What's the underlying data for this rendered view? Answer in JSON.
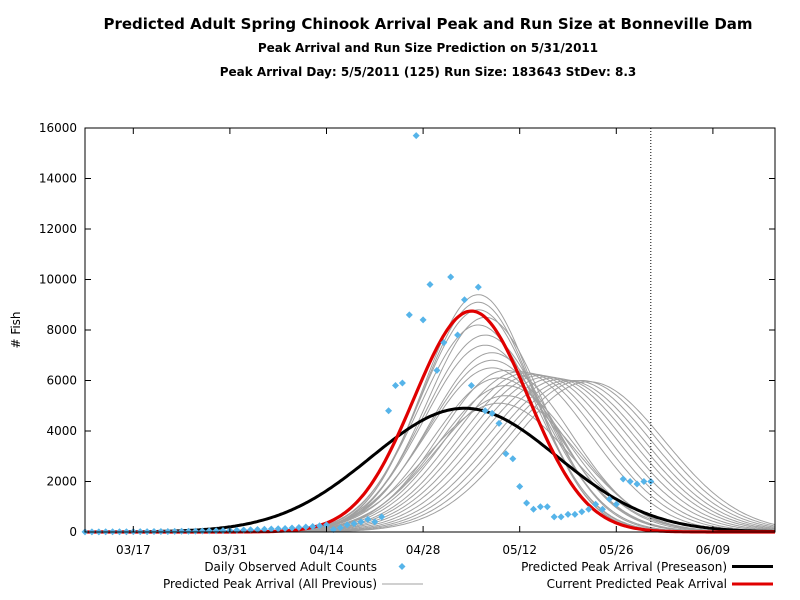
{
  "header": {
    "title": "Predicted Adult Spring Chinook Arrival Peak and Run Size at Bonneville Dam",
    "subtitle": "Peak Arrival and Run Size Prediction on 5/31/2011",
    "info_line": "Peak Arrival Day: 5/5/2011 (125) Run Size: 183643 StDev: 8.3"
  },
  "colors": {
    "observed": "#56b4e9",
    "current": "#e00000",
    "preseason": "#000000",
    "all_previous": "#a0a0a0"
  },
  "chart_data": {
    "type": "scatter",
    "title": "Predicted Adult Spring Chinook Arrival Peak and Run Size at Bonneville Dam",
    "subtitle": "Peak Arrival and Run Size Prediction on 5/31/2011",
    "ylabel": "# Fish",
    "xlabel": "",
    "xlim": [
      "2011-03-10",
      "2011-06-18"
    ],
    "ylim": [
      0,
      16000
    ],
    "xticks": [
      {
        "label": "03/17",
        "date": "2011-03-17"
      },
      {
        "label": "03/31",
        "date": "2011-03-31"
      },
      {
        "label": "04/14",
        "date": "2011-04-14"
      },
      {
        "label": "04/28",
        "date": "2011-04-28"
      },
      {
        "label": "05/12",
        "date": "2011-05-12"
      },
      {
        "label": "05/26",
        "date": "2011-05-26"
      },
      {
        "label": "06/09",
        "date": "2011-06-09"
      }
    ],
    "yticks": [
      0,
      2000,
      4000,
      6000,
      8000,
      10000,
      12000,
      14000,
      16000
    ],
    "vline_date": "2011-05-31",
    "legend_position": "bottom",
    "legend": {
      "observed": "Daily Observed Adult Counts",
      "all_previous": "Predicted Peak Arrival (All Previous)",
      "preseason": "Predicted Peak Arrival (Preseason)",
      "current": "Current Predicted Peak Arrival"
    },
    "observed": {
      "name": "Daily Observed Adult Counts",
      "x": [
        "2011-03-10",
        "2011-03-11",
        "2011-03-12",
        "2011-03-13",
        "2011-03-14",
        "2011-03-15",
        "2011-03-16",
        "2011-03-17",
        "2011-03-18",
        "2011-03-19",
        "2011-03-20",
        "2011-03-21",
        "2011-03-22",
        "2011-03-23",
        "2011-03-24",
        "2011-03-25",
        "2011-03-26",
        "2011-03-27",
        "2011-03-28",
        "2011-03-29",
        "2011-03-30",
        "2011-03-31",
        "2011-04-01",
        "2011-04-02",
        "2011-04-03",
        "2011-04-04",
        "2011-04-05",
        "2011-04-06",
        "2011-04-07",
        "2011-04-08",
        "2011-04-09",
        "2011-04-10",
        "2011-04-11",
        "2011-04-12",
        "2011-04-13",
        "2011-04-14",
        "2011-04-15",
        "2011-04-16",
        "2011-04-17",
        "2011-04-18",
        "2011-04-19",
        "2011-04-20",
        "2011-04-21",
        "2011-04-22",
        "2011-04-23",
        "2011-04-24",
        "2011-04-25",
        "2011-04-26",
        "2011-04-27",
        "2011-04-28",
        "2011-04-29",
        "2011-04-30",
        "2011-05-01",
        "2011-05-02",
        "2011-05-03",
        "2011-05-04",
        "2011-05-05",
        "2011-05-06",
        "2011-05-07",
        "2011-05-08",
        "2011-05-09",
        "2011-05-10",
        "2011-05-11",
        "2011-05-12",
        "2011-05-13",
        "2011-05-14",
        "2011-05-15",
        "2011-05-16",
        "2011-05-17",
        "2011-05-18",
        "2011-05-19",
        "2011-05-20",
        "2011-05-21",
        "2011-05-22",
        "2011-05-23",
        "2011-05-24",
        "2011-05-25",
        "2011-05-26",
        "2011-05-27",
        "2011-05-28",
        "2011-05-29",
        "2011-05-30",
        "2011-05-31"
      ],
      "y": [
        5,
        5,
        6,
        8,
        8,
        10,
        12,
        14,
        15,
        15,
        18,
        20,
        22,
        25,
        28,
        32,
        36,
        40,
        45,
        50,
        55,
        60,
        70,
        80,
        90,
        100,
        110,
        120,
        130,
        140,
        160,
        180,
        200,
        220,
        250,
        280,
        100,
        170,
        280,
        330,
        400,
        500,
        400,
        600,
        4800,
        5800,
        5900,
        8600,
        15700,
        8400,
        9800,
        6400,
        7500,
        10100,
        7800,
        9200,
        5800,
        9700,
        4800,
        4700,
        4300,
        3100,
        2900,
        1800,
        1150,
        900,
        1000,
        1000,
        600,
        600,
        700,
        700,
        800,
        900,
        1100,
        900,
        1300,
        1100,
        2100,
        2000,
        1900,
        2000,
        2000
      ]
    },
    "current_prediction": {
      "name": "Current Predicted Peak Arrival",
      "peak_date": "2011-05-05",
      "peak_value": 8750,
      "sd_days": 8.3
    },
    "preseason_prediction": {
      "name": "Predicted Peak Arrival (Preseason)",
      "peak_date": "2011-05-04",
      "peak_value": 4900,
      "sd_days": 13.5
    },
    "previous_predictions": [
      {
        "peak_date": "2011-05-06",
        "peak_value": 9400,
        "sd_days": 8.0
      },
      {
        "peak_date": "2011-05-06",
        "peak_value": 9100,
        "sd_days": 8.1
      },
      {
        "peak_date": "2011-05-06",
        "peak_value": 8800,
        "sd_days": 8.3
      },
      {
        "peak_date": "2011-05-07",
        "peak_value": 8500,
        "sd_days": 8.4
      },
      {
        "peak_date": "2011-05-06",
        "peak_value": 8200,
        "sd_days": 8.5
      },
      {
        "peak_date": "2011-05-07",
        "peak_value": 7800,
        "sd_days": 8.7
      },
      {
        "peak_date": "2011-05-07",
        "peak_value": 7400,
        "sd_days": 8.8
      },
      {
        "peak_date": "2011-05-08",
        "peak_value": 7100,
        "sd_days": 9.0
      },
      {
        "peak_date": "2011-05-08",
        "peak_value": 6800,
        "sd_days": 9.2
      },
      {
        "peak_date": "2011-05-08",
        "peak_value": 6500,
        "sd_days": 9.4
      },
      {
        "peak_date": "2011-05-10",
        "peak_value": 6400,
        "sd_days": 9.5
      },
      {
        "peak_date": "2011-05-09",
        "peak_value": 6100,
        "sd_days": 9.6
      },
      {
        "peak_date": "2011-05-10",
        "peak_value": 5800,
        "sd_days": 9.8
      },
      {
        "peak_date": "2011-05-10",
        "peak_value": 5400,
        "sd_days": 10.0
      },
      {
        "peak_date": "2011-05-09",
        "peak_value": 5100,
        "sd_days": 10.2
      },
      {
        "peak_date": "2011-05-12",
        "peak_value": 6350,
        "sd_days": 10.3
      },
      {
        "peak_date": "2011-05-13",
        "peak_value": 6300,
        "sd_days": 10.5
      },
      {
        "peak_date": "2011-05-14",
        "peak_value": 6250,
        "sd_days": 10.6
      },
      {
        "peak_date": "2011-05-15",
        "peak_value": 6200,
        "sd_days": 10.8
      },
      {
        "peak_date": "2011-05-16",
        "peak_value": 6150,
        "sd_days": 10.9
      },
      {
        "peak_date": "2011-05-17",
        "peak_value": 6100,
        "sd_days": 11.0
      },
      {
        "peak_date": "2011-05-18",
        "peak_value": 6050,
        "sd_days": 11.0
      },
      {
        "peak_date": "2011-05-19",
        "peak_value": 6000,
        "sd_days": 11.0
      },
      {
        "peak_date": "2011-05-20",
        "peak_value": 6000,
        "sd_days": 11.0
      },
      {
        "peak_date": "2011-05-21",
        "peak_value": 6000,
        "sd_days": 11.0
      },
      {
        "peak_date": "2011-05-22",
        "peak_value": 5950,
        "sd_days": 11.0
      }
    ]
  }
}
